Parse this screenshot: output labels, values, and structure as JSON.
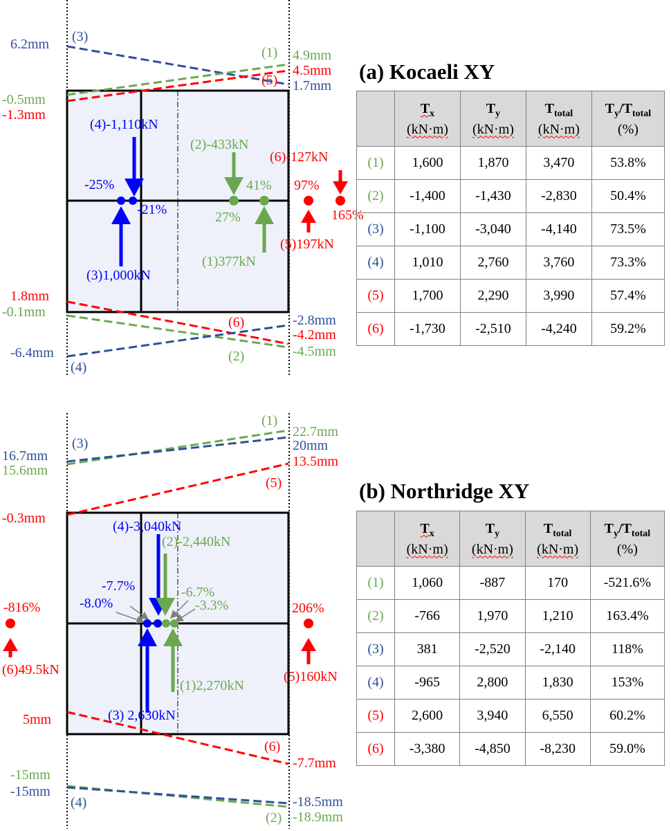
{
  "panel_a": {
    "title": "(a) Kocaeli XY",
    "labels": {
      "d3_left": "6.2mm",
      "id3": "(3)",
      "id1": "(1)",
      "d1_right": "4.9mm",
      "d5_right": "4.5mm",
      "id5": "(5)",
      "d3_right": "1.7mm",
      "d1_left": "-0.5mm",
      "d5_left": "-1.3mm",
      "f4": "(4)-1,110kN",
      "f2": "(2)-433kN",
      "f6": "(6)-127kN",
      "p_25": "-25%",
      "p_21": "-21%",
      "p_41": "41%",
      "p_27": "27%",
      "p_97": "97%",
      "p_165": "165%",
      "f5": "(5)197kN",
      "f1": "(1)377kN",
      "f3": "(3)1,000kN",
      "d6_left": "1.8mm",
      "d2_left": "-0.1mm",
      "id6": "(6)",
      "d4_right": "-2.8mm",
      "d6_right": "-4.2mm",
      "d4_left": "-6.4mm",
      "id4": "(4)",
      "id2": "(2)",
      "d2_right": "-4.5mm"
    },
    "table": {
      "headers": [
        {
          "sym": "T",
          "sub": "x",
          "unit": "(kN·m)"
        },
        {
          "sym": "T",
          "sub": "y",
          "unit": "(kN·m)"
        },
        {
          "sym": "T",
          "sub": "total",
          "unit": "(kN·m)"
        },
        {
          "sym": "T",
          "sub": "y",
          "sym2": "/T",
          "sub2": "total",
          "unit": "(%)"
        }
      ],
      "rows": [
        {
          "idx": "(1)",
          "cells": [
            "1,600",
            "1,870",
            "3,470",
            "53.8%"
          ]
        },
        {
          "idx": "(2)",
          "cells": [
            "-1,400",
            "-1,430",
            "-2,830",
            "50.4%"
          ]
        },
        {
          "idx": "(3)",
          "cells": [
            "-1,100",
            "-3,040",
            "-4,140",
            "73.5%"
          ]
        },
        {
          "idx": "(4)",
          "cells": [
            "1,010",
            "2,760",
            "3,760",
            "73.3%"
          ]
        },
        {
          "idx": "(5)",
          "cells": [
            "1,700",
            "2,290",
            "3,990",
            "57.4%"
          ]
        },
        {
          "idx": "(6)",
          "cells": [
            "-1,730",
            "-2,510",
            "-4,240",
            "59.2%"
          ]
        }
      ]
    }
  },
  "panel_b": {
    "title": "(b) Northridge XY",
    "labels": {
      "id1": "(1)",
      "d1_right": "22.7mm",
      "id3": "(3)",
      "d3_right": "20mm",
      "d3_left": "16.7mm",
      "d1_left": "15.6mm",
      "d5_right": "13.5mm",
      "id5": "(5)",
      "d5_left": "-0.3mm",
      "f4": "(4)-3,040kN",
      "f2": "(2)-2,440kN",
      "p_77": "-7.7%",
      "p_67": "-6.7%",
      "p_80": "-8.0%",
      "p_33": "-3.3%",
      "p_816": "-816%",
      "p_206": "206%",
      "f6": "(6)49.5kN",
      "f5": "(5)160kN",
      "f1": "(1)2,270kN",
      "f3": "(3) 2,630kN",
      "d6_left": "5mm",
      "id6": "(6)",
      "d6_right": "-7.7mm",
      "d2_left": "-15mm",
      "d4_left": "-15mm",
      "id4": "(4)",
      "d4_right": "-18.5mm",
      "id2": "(2)",
      "d2_right": "-18.9mm"
    },
    "table": {
      "headers": [
        {
          "sym": "T",
          "sub": "x",
          "unit": "(kN·m)"
        },
        {
          "sym": "T",
          "sub": "y",
          "unit": "(kN·m)"
        },
        {
          "sym": "T",
          "sub": "total",
          "unit": "(kN·m)"
        },
        {
          "sym": "T",
          "sub": "y",
          "sym2": "/T",
          "sub2": "total",
          "unit": "(%)"
        }
      ],
      "rows": [
        {
          "idx": "(1)",
          "cells": [
            "1,060",
            "-887",
            "170",
            "-521.6%"
          ]
        },
        {
          "idx": "(2)",
          "cells": [
            "-766",
            "1,970",
            "1,210",
            "163.4%"
          ]
        },
        {
          "idx": "(3)",
          "cells": [
            "381",
            "-2,520",
            "-2,140",
            "118%"
          ]
        },
        {
          "idx": "(4)",
          "cells": [
            "-965",
            "2,800",
            "1,830",
            "153%"
          ]
        },
        {
          "idx": "(5)",
          "cells": [
            "2,600",
            "3,940",
            "6,550",
            "60.2%"
          ]
        },
        {
          "idx": "(6)",
          "cells": [
            "-3,380",
            "-4,850",
            "-8,230",
            "59.0%"
          ]
        }
      ]
    }
  }
}
